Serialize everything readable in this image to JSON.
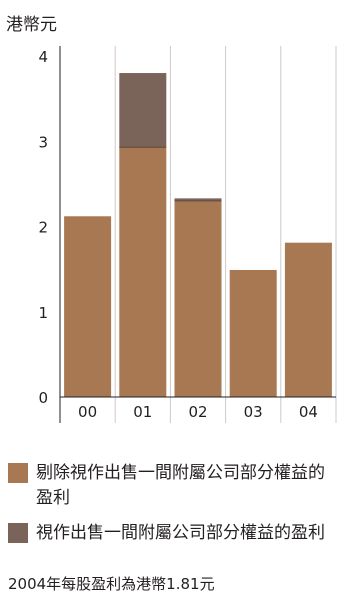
{
  "unit_label": "港幣元",
  "footnote": "2004年每股盈利為港幣1.81元",
  "colors": {
    "excl": "#a87852",
    "incl": "#7a6358",
    "axis": "#231f20",
    "sep": "#d0c9c4"
  },
  "legend": [
    {
      "label": "剔除視作出售一間附屬公司部分權益的盈利",
      "color": "#a87852"
    },
    {
      "label": "視作出售一間附屬公司部分權益的盈利",
      "color": "#7a6358"
    }
  ],
  "chart_data": {
    "type": "bar",
    "stacked": true,
    "categories": [
      "00",
      "01",
      "02",
      "03",
      "04"
    ],
    "series": [
      {
        "name": "剔除視作出售一間附屬公司部分權益的盈利",
        "values": [
          2.12,
          2.93,
          2.3,
          1.49,
          1.81
        ]
      },
      {
        "name": "視作出售一間附屬公司部分權益的盈利",
        "values": [
          0,
          0.87,
          0.03,
          0,
          0
        ]
      }
    ],
    "ylim": [
      0,
      4
    ],
    "yticks": [
      "0",
      "1",
      "2",
      "3",
      "4"
    ],
    "ylabel": "港幣元"
  }
}
